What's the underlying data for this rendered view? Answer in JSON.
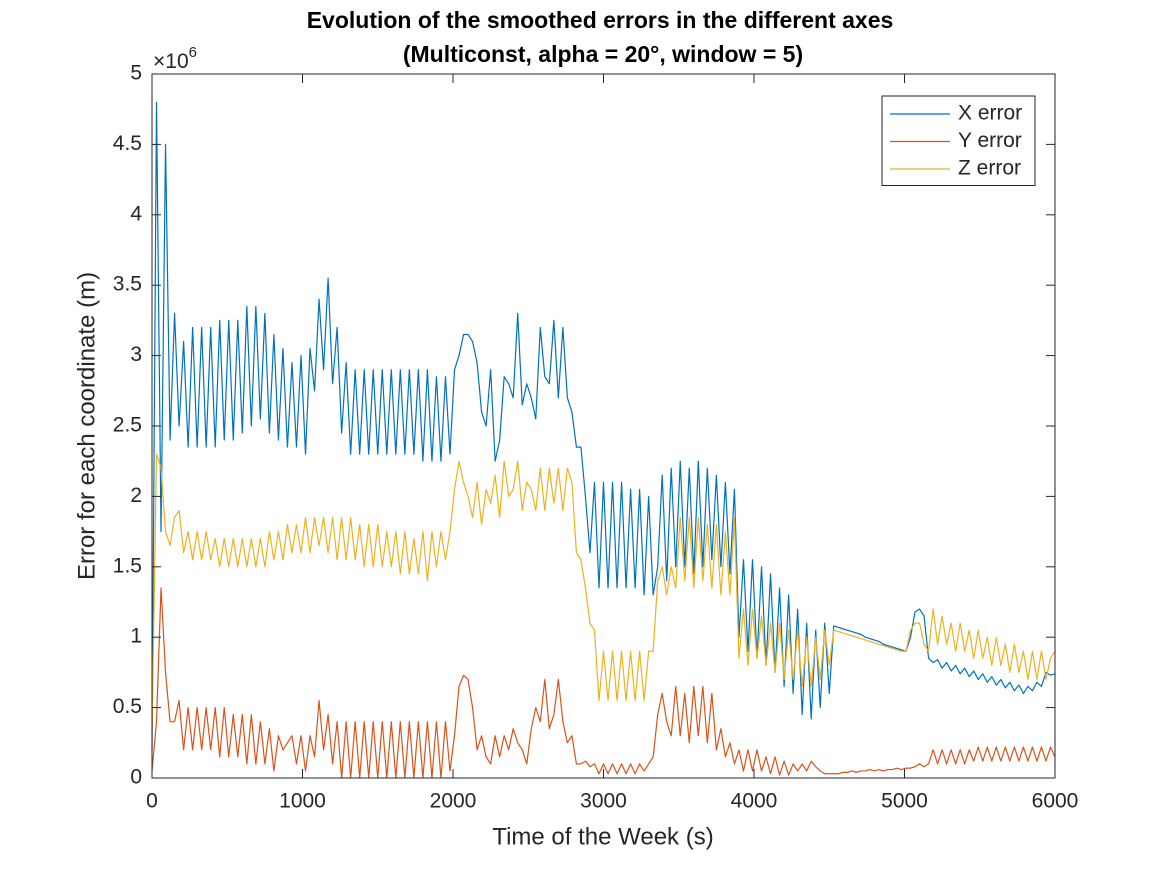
{
  "chart_data": {
    "type": "line",
    "title": [
      "Evolution of the smoothed errors in the different axes",
      "(Multiconst, alpha = 20°, window = 5)"
    ],
    "xlabel": "Time of the Week (s)",
    "ylabel": "Error for each coordinate (m)",
    "y_multiplier": "×10",
    "y_multiplier_exponent": "6",
    "xlim": [
      0,
      6000
    ],
    "xticks": [
      0,
      1000,
      2000,
      3000,
      4000,
      5000,
      6000
    ],
    "ylim": [
      0,
      5
    ],
    "yticks": [
      0,
      0.5,
      1,
      1.5,
      2,
      2.5,
      3,
      3.5,
      4,
      4.5,
      5
    ],
    "grid": false,
    "legend": "northeast",
    "x": [
      0,
      30,
      60,
      90,
      120,
      150,
      180,
      210,
      240,
      270,
      300,
      330,
      360,
      390,
      420,
      450,
      480,
      510,
      540,
      570,
      600,
      630,
      660,
      690,
      720,
      750,
      780,
      810,
      840,
      870,
      900,
      930,
      960,
      990,
      1020,
      1050,
      1080,
      1110,
      1140,
      1170,
      1200,
      1230,
      1260,
      1290,
      1320,
      1350,
      1380,
      1410,
      1440,
      1470,
      1500,
      1530,
      1560,
      1590,
      1620,
      1650,
      1680,
      1710,
      1740,
      1770,
      1800,
      1830,
      1860,
      1890,
      1920,
      1950,
      1980,
      2010,
      2040,
      2070,
      2100,
      2130,
      2160,
      2190,
      2220,
      2250,
      2280,
      2310,
      2340,
      2370,
      2400,
      2430,
      2460,
      2490,
      2520,
      2550,
      2580,
      2610,
      2640,
      2670,
      2700,
      2730,
      2760,
      2790,
      2820,
      2850,
      2880,
      2910,
      2940,
      2970,
      3000,
      3030,
      3060,
      3090,
      3120,
      3150,
      3180,
      3210,
      3240,
      3270,
      3300,
      3330,
      3360,
      3390,
      3420,
      3450,
      3480,
      3510,
      3540,
      3570,
      3600,
      3630,
      3660,
      3690,
      3720,
      3750,
      3780,
      3810,
      3840,
      3870,
      3900,
      3930,
      3960,
      3990,
      4020,
      4050,
      4080,
      4110,
      4140,
      4170,
      4200,
      4230,
      4260,
      4290,
      4320,
      4350,
      4380,
      4410,
      4440,
      4470,
      4500,
      4530,
      4560,
      4590,
      4620,
      4650,
      4680,
      4710,
      4740,
      4770,
      4800,
      4830,
      4860,
      4890,
      4920,
      4950,
      4980,
      5010,
      5040,
      5070,
      5100,
      5130,
      5160,
      5190,
      5220,
      5250,
      5280,
      5310,
      5340,
      5370,
      5400,
      5430,
      5460,
      5490,
      5520,
      5550,
      5580,
      5610,
      5640,
      5670,
      5700,
      5730,
      5760,
      5790,
      5820,
      5850,
      5880,
      5910,
      5940,
      5970,
      6000
    ],
    "series": [
      {
        "name": "X error",
        "color": "#0072BD",
        "values": [
          0.2,
          4.8,
          1.75,
          4.5,
          2.4,
          3.3,
          2.5,
          3.1,
          2.35,
          3.2,
          2.35,
          3.2,
          2.35,
          3.2,
          2.35,
          3.25,
          2.4,
          3.25,
          2.4,
          3.25,
          2.45,
          3.35,
          2.5,
          3.35,
          2.55,
          3.3,
          2.45,
          3.15,
          2.4,
          3.05,
          2.35,
          2.95,
          2.35,
          3.0,
          2.3,
          3.05,
          2.75,
          3.4,
          2.9,
          3.55,
          2.8,
          3.2,
          2.45,
          2.95,
          2.3,
          2.9,
          2.3,
          2.9,
          2.3,
          2.9,
          2.3,
          2.9,
          2.3,
          2.9,
          2.3,
          2.9,
          2.3,
          2.9,
          2.3,
          2.9,
          2.25,
          2.9,
          2.25,
          2.85,
          2.25,
          2.85,
          2.3,
          2.9,
          3.0,
          3.15,
          3.15,
          3.1,
          2.95,
          2.6,
          2.5,
          2.9,
          2.25,
          2.4,
          2.85,
          2.8,
          2.7,
          3.3,
          2.65,
          2.8,
          2.7,
          2.55,
          3.2,
          2.85,
          2.8,
          3.25,
          2.7,
          3.2,
          2.7,
          2.6,
          2.35,
          2.35,
          2.0,
          1.6,
          2.1,
          1.35,
          2.1,
          1.35,
          2.1,
          1.35,
          2.1,
          1.35,
          2.05,
          1.35,
          2.05,
          1.3,
          2.0,
          1.3,
          1.5,
          2.15,
          1.4,
          2.2,
          1.5,
          2.25,
          1.5,
          2.2,
          1.45,
          2.25,
          1.5,
          2.2,
          1.55,
          2.15,
          1.5,
          2.1,
          1.45,
          2.05,
          1.0,
          1.55,
          0.9,
          1.55,
          0.85,
          1.5,
          0.8,
          1.45,
          0.75,
          1.35,
          0.65,
          1.3,
          0.6,
          1.2,
          0.45,
          1.1,
          0.42,
          1.05,
          0.5,
          1.1,
          0.6,
          1.08,
          1.07,
          1.06,
          1.05,
          1.04,
          1.03,
          1.02,
          1.0,
          0.99,
          0.98,
          0.97,
          0.95,
          0.94,
          0.93,
          0.92,
          0.91,
          0.9,
          1.0,
          1.18,
          1.2,
          1.15,
          0.85,
          0.82,
          0.84,
          0.78,
          0.82,
          0.76,
          0.8,
          0.74,
          0.78,
          0.72,
          0.76,
          0.7,
          0.74,
          0.68,
          0.72,
          0.66,
          0.7,
          0.64,
          0.68,
          0.62,
          0.66,
          0.6,
          0.65,
          0.62,
          0.68,
          0.65,
          0.75,
          0.73,
          0.74
        ]
      },
      {
        "name": "Y error",
        "color": "#D95319",
        "values": [
          0.05,
          0.4,
          1.35,
          0.75,
          0.4,
          0.4,
          0.55,
          0.2,
          0.5,
          0.2,
          0.5,
          0.2,
          0.5,
          0.2,
          0.5,
          0.15,
          0.5,
          0.15,
          0.45,
          0.15,
          0.45,
          0.1,
          0.45,
          0.1,
          0.4,
          0.1,
          0.35,
          0.05,
          0.3,
          0.2,
          0.25,
          0.3,
          0.1,
          0.3,
          0.05,
          0.3,
          0.15,
          0.55,
          0.2,
          0.45,
          0.1,
          0.4,
          0,
          0.4,
          0,
          0.4,
          0,
          0.4,
          0,
          0.4,
          0,
          0.4,
          0,
          0.4,
          0,
          0.4,
          0,
          0.4,
          0,
          0.4,
          0,
          0.4,
          0,
          0.4,
          0,
          0.4,
          0.05,
          0.3,
          0.65,
          0.73,
          0.7,
          0.5,
          0.2,
          0.3,
          0.15,
          0.1,
          0.3,
          0.15,
          0.3,
          0.2,
          0.35,
          0.25,
          0.2,
          0.1,
          0.35,
          0.5,
          0.4,
          0.7,
          0.35,
          0.45,
          0.7,
          0.4,
          0.25,
          0.3,
          0.1,
          0.1,
          0.12,
          0.08,
          0.1,
          0.03,
          0.1,
          0.03,
          0.1,
          0.03,
          0.1,
          0.03,
          0.1,
          0.03,
          0.1,
          0.05,
          0.1,
          0.15,
          0.45,
          0.6,
          0.4,
          0.3,
          0.65,
          0.3,
          0.6,
          0.25,
          0.65,
          0.3,
          0.65,
          0.25,
          0.6,
          0.2,
          0.35,
          0.15,
          0.25,
          0.1,
          0.2,
          0.05,
          0.2,
          0.05,
          0.2,
          0.05,
          0.15,
          0.03,
          0.15,
          0.02,
          0.12,
          0.02,
          0.1,
          0.05,
          0.1,
          0.05,
          0.12,
          0.08,
          0.05,
          0.03,
          0.03,
          0.03,
          0.03,
          0.04,
          0.04,
          0.05,
          0.04,
          0.05,
          0.05,
          0.06,
          0.05,
          0.06,
          0.05,
          0.06,
          0.06,
          0.07,
          0.06,
          0.07,
          0.07,
          0.08,
          0.1,
          0.08,
          0.1,
          0.2,
          0.1,
          0.2,
          0.1,
          0.2,
          0.1,
          0.2,
          0.1,
          0.2,
          0.12,
          0.22,
          0.12,
          0.22,
          0.12,
          0.22,
          0.12,
          0.22,
          0.12,
          0.22,
          0.12,
          0.22,
          0.12,
          0.22,
          0.12,
          0.22,
          0.12,
          0.22,
          0.15
        ]
      },
      {
        "name": "Z error",
        "color": "#EDB120",
        "values": [
          0.3,
          2.3,
          2.2,
          1.75,
          1.65,
          1.85,
          1.9,
          1.6,
          1.75,
          1.55,
          1.75,
          1.55,
          1.75,
          1.55,
          1.7,
          1.5,
          1.7,
          1.5,
          1.7,
          1.5,
          1.7,
          1.5,
          1.7,
          1.5,
          1.7,
          1.5,
          1.75,
          1.55,
          1.75,
          1.55,
          1.8,
          1.6,
          1.8,
          1.6,
          1.85,
          1.6,
          1.85,
          1.65,
          1.85,
          1.6,
          1.85,
          1.55,
          1.85,
          1.55,
          1.85,
          1.55,
          1.8,
          1.5,
          1.8,
          1.5,
          1.8,
          1.5,
          1.75,
          1.5,
          1.75,
          1.45,
          1.75,
          1.45,
          1.7,
          1.45,
          1.75,
          1.4,
          1.75,
          1.5,
          1.75,
          1.55,
          1.75,
          2.05,
          2.25,
          2.1,
          2.0,
          1.85,
          2.1,
          1.8,
          2.05,
          1.95,
          2.15,
          1.85,
          2.25,
          2.0,
          2.05,
          2.25,
          1.9,
          2.1,
          2.05,
          1.9,
          2.2,
          1.9,
          2.2,
          1.95,
          2.2,
          1.9,
          2.2,
          2.1,
          1.6,
          1.55,
          1.35,
          1.1,
          1.05,
          0.55,
          0.9,
          0.55,
          0.9,
          0.55,
          0.9,
          0.55,
          0.9,
          0.55,
          0.9,
          0.55,
          0.9,
          0.9,
          1.4,
          1.5,
          1.3,
          1.5,
          1.35,
          1.85,
          1.4,
          1.85,
          1.35,
          1.85,
          1.4,
          1.8,
          1.35,
          1.8,
          1.3,
          1.75,
          1.3,
          1.85,
          0.85,
          1.2,
          0.8,
          1.2,
          0.85,
          1.15,
          0.8,
          1.1,
          0.75,
          1.1,
          0.7,
          1.05,
          0.7,
          1.05,
          0.65,
          1.0,
          0.65,
          1.0,
          0.7,
          1.05,
          0.8,
          1.05,
          1.04,
          1.03,
          1.02,
          1.01,
          1.0,
          0.99,
          0.98,
          0.97,
          0.96,
          0.95,
          0.94,
          0.93,
          0.92,
          0.91,
          0.9,
          0.9,
          1.05,
          1.1,
          1.1,
          0.95,
          0.9,
          1.2,
          0.95,
          1.15,
          0.95,
          1.1,
          0.9,
          1.1,
          0.9,
          1.05,
          0.85,
          1.05,
          0.85,
          1.0,
          0.8,
          1.0,
          0.8,
          0.95,
          0.75,
          0.95,
          0.75,
          0.9,
          0.7,
          0.9,
          0.7,
          0.9,
          0.7,
          0.85,
          0.9
        ]
      }
    ]
  }
}
